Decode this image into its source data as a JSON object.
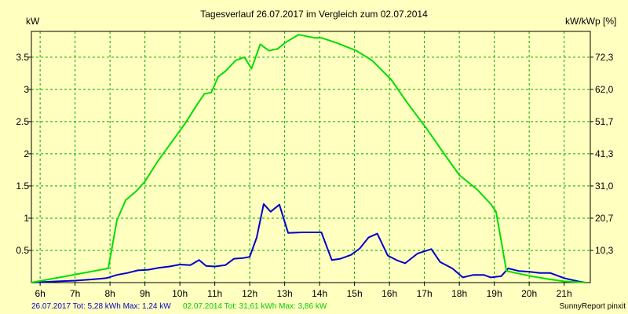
{
  "chart_data": {
    "type": "line",
    "title": "Tagesverlauf 26.07.2017 im Vergleich zum 02.07.2014",
    "ylabel_left": "kW",
    "ylabel_right": "kW/kWp [%]",
    "x_range": [
      5.75,
      21.75
    ],
    "ylim": [
      0,
      3.9
    ],
    "x_ticks": [
      {
        "x": 6,
        "label": "6h"
      },
      {
        "x": 7,
        "label": "7h"
      },
      {
        "x": 8,
        "label": "8h"
      },
      {
        "x": 9,
        "label": "9h"
      },
      {
        "x": 10,
        "label": "10h"
      },
      {
        "x": 11,
        "label": "11h"
      },
      {
        "x": 12,
        "label": "12h"
      },
      {
        "x": 13,
        "label": "13h"
      },
      {
        "x": 14,
        "label": "14h"
      },
      {
        "x": 15,
        "label": "15h"
      },
      {
        "x": 16,
        "label": "16h"
      },
      {
        "x": 17,
        "label": "17h"
      },
      {
        "x": 18,
        "label": "18h"
      },
      {
        "x": 19,
        "label": "19h"
      },
      {
        "x": 20,
        "label": "20h"
      },
      {
        "x": 21,
        "label": "21h"
      }
    ],
    "y_ticks_left": [
      {
        "y": 0.5,
        "label": "0.5"
      },
      {
        "y": 1,
        "label": "1"
      },
      {
        "y": 1.5,
        "label": "1.5"
      },
      {
        "y": 2,
        "label": "2"
      },
      {
        "y": 2.5,
        "label": "2.5"
      },
      {
        "y": 3,
        "label": "3"
      },
      {
        "y": 3.5,
        "label": "3.5"
      }
    ],
    "y_ticks_right": [
      {
        "y": 0.5,
        "label": "10,3"
      },
      {
        "y": 1,
        "label": "20,7"
      },
      {
        "y": 1.5,
        "label": "31,0"
      },
      {
        "y": 2,
        "label": "41,3"
      },
      {
        "y": 2.5,
        "label": "51,7"
      },
      {
        "y": 3,
        "label": "62,0"
      },
      {
        "y": 3.5,
        "label": "72,3"
      }
    ],
    "grid": true,
    "series": [
      {
        "name": "26.07.2017",
        "color": "#0000CC",
        "points": [
          [
            5.75,
            0
          ],
          [
            6.5,
            0.02
          ],
          [
            7,
            0.03
          ],
          [
            7.5,
            0.05
          ],
          [
            7.9,
            0.07
          ],
          [
            8.2,
            0.12
          ],
          [
            8.5,
            0.15
          ],
          [
            8.8,
            0.19
          ],
          [
            9.1,
            0.2
          ],
          [
            9.4,
            0.23
          ],
          [
            9.7,
            0.25
          ],
          [
            10,
            0.28
          ],
          [
            10.3,
            0.27
          ],
          [
            10.55,
            0.35
          ],
          [
            10.75,
            0.26
          ],
          [
            11,
            0.25
          ],
          [
            11.3,
            0.27
          ],
          [
            11.55,
            0.37
          ],
          [
            11.8,
            0.38
          ],
          [
            12,
            0.4
          ],
          [
            12.2,
            0.7
          ],
          [
            12.4,
            1.22
          ],
          [
            12.6,
            1.1
          ],
          [
            12.85,
            1.21
          ],
          [
            13.1,
            0.77
          ],
          [
            13.5,
            0.78
          ],
          [
            13.7,
            0.78
          ],
          [
            14.05,
            0.78
          ],
          [
            14.35,
            0.35
          ],
          [
            14.6,
            0.37
          ],
          [
            14.9,
            0.43
          ],
          [
            15.15,
            0.53
          ],
          [
            15.4,
            0.7
          ],
          [
            15.65,
            0.76
          ],
          [
            15.95,
            0.42
          ],
          [
            16.2,
            0.35
          ],
          [
            16.45,
            0.3
          ],
          [
            16.8,
            0.45
          ],
          [
            17.2,
            0.52
          ],
          [
            17.45,
            0.32
          ],
          [
            17.8,
            0.22
          ],
          [
            18.1,
            0.08
          ],
          [
            18.4,
            0.12
          ],
          [
            18.7,
            0.12
          ],
          [
            18.9,
            0.08
          ],
          [
            19.2,
            0.1
          ],
          [
            19.4,
            0.22
          ],
          [
            19.7,
            0.18
          ],
          [
            20,
            0.17
          ],
          [
            20.3,
            0.15
          ],
          [
            20.6,
            0.15
          ],
          [
            21,
            0.07
          ],
          [
            21.4,
            0.02
          ],
          [
            21.6,
            0
          ]
        ]
      },
      {
        "name": "02.07.2014",
        "color": "#00DD00",
        "points": [
          [
            5.75,
            0
          ],
          [
            7.95,
            0.22
          ],
          [
            8.2,
            0.97
          ],
          [
            8.45,
            1.28
          ],
          [
            8.75,
            1.42
          ],
          [
            9,
            1.57
          ],
          [
            9.35,
            1.87
          ],
          [
            9.75,
            2.17
          ],
          [
            10.15,
            2.47
          ],
          [
            10.5,
            2.77
          ],
          [
            10.7,
            2.93
          ],
          [
            10.9,
            2.95
          ],
          [
            11.1,
            3.2
          ],
          [
            11.3,
            3.28
          ],
          [
            11.6,
            3.45
          ],
          [
            11.85,
            3.5
          ],
          [
            12.05,
            3.32
          ],
          [
            12.3,
            3.7
          ],
          [
            12.55,
            3.6
          ],
          [
            12.8,
            3.63
          ],
          [
            13,
            3.72
          ],
          [
            13.4,
            3.85
          ],
          [
            13.85,
            3.8
          ],
          [
            14.05,
            3.8
          ],
          [
            14.5,
            3.72
          ],
          [
            15.05,
            3.6
          ],
          [
            15.5,
            3.45
          ],
          [
            16.05,
            3.15
          ],
          [
            16.5,
            2.8
          ],
          [
            17.05,
            2.4
          ],
          [
            17.5,
            2.05
          ],
          [
            18,
            1.67
          ],
          [
            18.5,
            1.45
          ],
          [
            18.9,
            1.22
          ],
          [
            19.05,
            1.1
          ],
          [
            19.35,
            0.18
          ],
          [
            20.05,
            0.1
          ],
          [
            20.6,
            0.05
          ],
          [
            21,
            0.02
          ],
          [
            21.6,
            0
          ]
        ]
      }
    ]
  },
  "footer": {
    "series1_text": "26.07.2017 Tot: 5,28 kWh Max: 1,24 kW",
    "series2_text": "02.07.2014 Tot: 31,61 kWh Max: 3,86 kW",
    "credit": "SunnyReport pinxit"
  }
}
